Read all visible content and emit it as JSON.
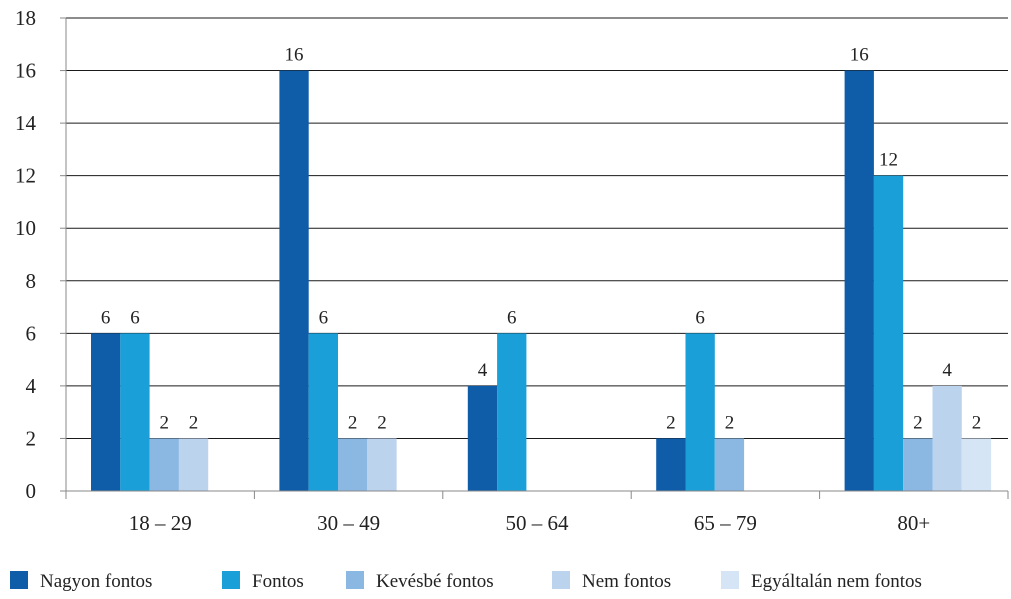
{
  "chart_data": {
    "type": "bar",
    "categories": [
      "18 – 29",
      "30 – 49",
      "50 – 64",
      "65 – 79",
      "80+"
    ],
    "series": [
      {
        "name": "Nagyon fontos",
        "color": "#0f5ca8",
        "values": [
          6,
          16,
          4,
          2,
          16
        ]
      },
      {
        "name": "Fontos",
        "color": "#1a9fd9",
        "values": [
          6,
          6,
          6,
          6,
          12
        ]
      },
      {
        "name": "Kevésbé fontos",
        "color": "#8bb8e3",
        "values": [
          2,
          2,
          null,
          2,
          2
        ]
      },
      {
        "name": "Nem fontos",
        "color": "#bcd3ee",
        "values": [
          2,
          2,
          null,
          null,
          4
        ]
      },
      {
        "name": "Egyáltalán nem fontos",
        "color": "#d6e5f5",
        "values": [
          null,
          null,
          null,
          null,
          2
        ]
      }
    ],
    "ylim": [
      0,
      18
    ],
    "yticks": [
      0,
      2,
      4,
      6,
      8,
      10,
      12,
      14,
      16,
      18
    ],
    "grid": true,
    "legend_position": "bottom",
    "xlabel": "",
    "ylabel": "",
    "title": ""
  }
}
